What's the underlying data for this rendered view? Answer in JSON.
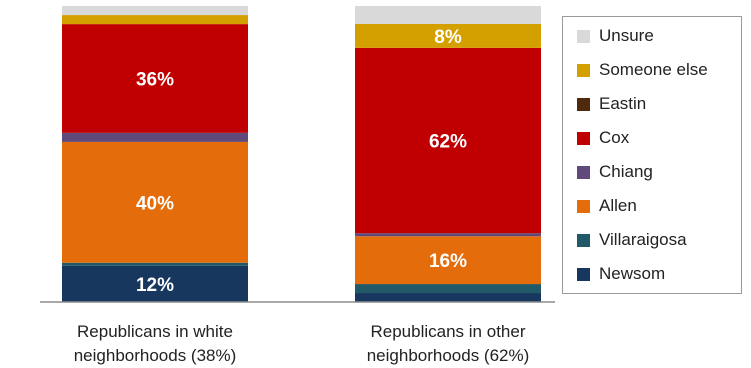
{
  "chart_data": {
    "type": "bar",
    "stacked": true,
    "percent_scale": true,
    "categories": [
      "Republicans in white\nneighborhoods (38%)",
      "Republicans in other\nneighborhoods (62%)"
    ],
    "series": [
      {
        "name": "Newsom",
        "color": "#17375e",
        "values": [
          12,
          3
        ],
        "labels": [
          "12%",
          ""
        ]
      },
      {
        "name": "Villaraigosa",
        "color": "#215968",
        "values": [
          1,
          3
        ],
        "labels": [
          "",
          ""
        ]
      },
      {
        "name": "Allen",
        "color": "#e46c0a",
        "values": [
          40,
          16
        ],
        "labels": [
          "40%",
          "16%"
        ]
      },
      {
        "name": "Chiang",
        "color": "#604a7b",
        "values": [
          3,
          1
        ],
        "labels": [
          "",
          ""
        ]
      },
      {
        "name": "Cox",
        "color": "#c00000",
        "values": [
          36,
          62
        ],
        "labels": [
          "36%",
          "62%"
        ]
      },
      {
        "name": "Eastin",
        "color": "#4f2a0e",
        "values": [
          0,
          0
        ],
        "labels": [
          "",
          ""
        ]
      },
      {
        "name": "Someone else",
        "color": "#d4a000",
        "values": [
          3,
          8
        ],
        "labels": [
          "",
          "8%"
        ]
      },
      {
        "name": "Unsure",
        "color": "#d9d9d9",
        "values": [
          3,
          6
        ],
        "labels": [
          "",
          ""
        ]
      }
    ],
    "legend_position": "right",
    "label_color": "#ffffff"
  }
}
